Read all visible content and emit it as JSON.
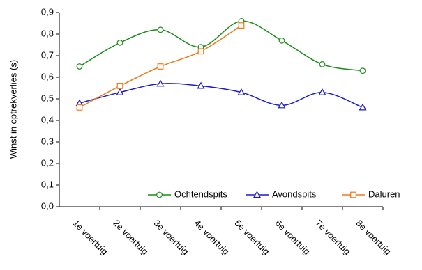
{
  "chart_data": {
    "type": "line",
    "y_label": "Winst in optrekverlies (s)",
    "categories": [
      "1e voertuig",
      "2e voertuig",
      "3e voertuig",
      "4e voertuig",
      "5e voertuig",
      "6e voertuig",
      "7e voertuig",
      "8e voertuig"
    ],
    "series": [
      {
        "name": "Ochtendspits",
        "color": "#1a8c1a",
        "marker": "circle",
        "values": [
          0.65,
          0.76,
          0.82,
          0.74,
          0.86,
          0.77,
          0.66,
          0.63
        ]
      },
      {
        "name": "Avondspits",
        "color": "#1a1acc",
        "marker": "triangle",
        "values": [
          0.48,
          0.53,
          0.57,
          0.56,
          0.53,
          0.47,
          0.53,
          0.46
        ]
      },
      {
        "name": "Daluren",
        "color": "#f07a1a",
        "marker": "square",
        "values": [
          0.46,
          0.56,
          0.65,
          0.72,
          0.84,
          null,
          null,
          null
        ]
      }
    ],
    "ylim": [
      0,
      0.9
    ],
    "yticks": [
      {
        "value": 0,
        "label": "0,0"
      },
      {
        "value": 0.1,
        "label": "0,1"
      },
      {
        "value": 0.2,
        "label": "0,2"
      },
      {
        "value": 0.3,
        "label": "0,3"
      },
      {
        "value": 0.4,
        "label": "0,4"
      },
      {
        "value": 0.5,
        "label": "0,5"
      },
      {
        "value": 0.6,
        "label": "0,6"
      },
      {
        "value": 0.7,
        "label": "0,7"
      },
      {
        "value": 0.8,
        "label": "0,8"
      },
      {
        "value": 0.9,
        "label": "0,9"
      }
    ],
    "smooth": true,
    "legend": "bottom-right"
  }
}
